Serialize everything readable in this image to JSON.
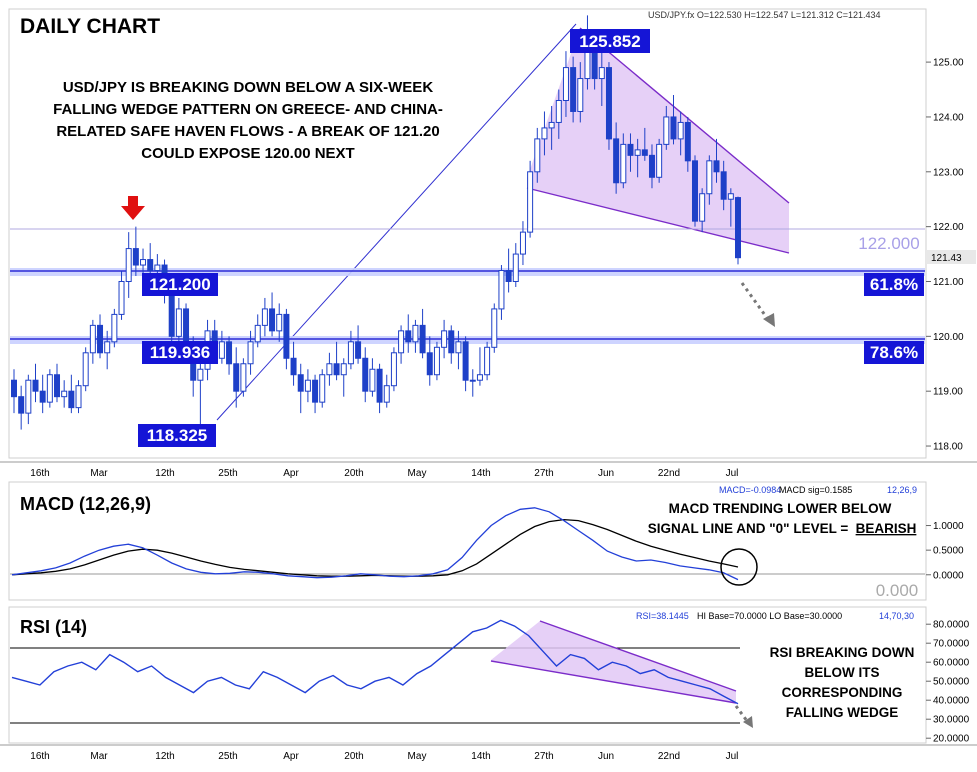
{
  "header": {
    "title": "DAILY CHART",
    "quote": "USD/JPY.fx O=122.530 H=122.547 L=121.312 C=121.434"
  },
  "colors": {
    "bull": "#1e40c8",
    "bear": "#1e40c8",
    "wedge_fill": "#e2c8f6",
    "wedge_line": "#7b2cc9",
    "level_box": "#1515d6",
    "macd_line": "#2340d8",
    "signal_line": "#000000",
    "rsi_line": "#2340d8",
    "annotation_arrow": "#777777",
    "red_arrow": "#e01010"
  },
  "main_panel": {
    "annotation": [
      "USD/JPY IS BREAKING DOWN BELOW A SIX-WEEK",
      "FALLING WEDGE PATTERN ON GREECE- AND CHINA-",
      "RELATED SAFE HAVEN FLOWS - A BREAK OF 121.20",
      "COULD EXPOSE 120.00 NEXT"
    ],
    "level_labels": {
      "high": "125.852",
      "fib618_level": "121.200",
      "fib786_level": "119.936",
      "low": "118.325",
      "fib618_pct": "61.8%",
      "fib786_pct": "78.6%",
      "ref_122": "122.000",
      "last": "121.43"
    },
    "y_ticks": [
      "125.00",
      "124.00",
      "123.00",
      "122.00",
      "121.00",
      "120.00",
      "119.00",
      "118.00"
    ]
  },
  "x_axis": {
    "labels": [
      "16th",
      "Mar",
      "12th",
      "25th",
      "Apr",
      "20th",
      "May",
      "14th",
      "27th",
      "Jun",
      "22nd",
      "Jul"
    ]
  },
  "macd_panel": {
    "title": "MACD (12,26,9)",
    "readout_macd": "MACD=-0.0984",
    "readout_sig": "MACD sig=0.1585",
    "readout_params": "12,26,9",
    "annotation": [
      "MACD TRENDING LOWER BELOW",
      "SIGNAL LINE AND \"0\" LEVEL = ",
      "BEARISH"
    ],
    "zero_label": "0.000",
    "y_ticks": [
      "1.0000",
      "0.5000",
      "0.0000"
    ]
  },
  "rsi_panel": {
    "title": "RSI (14)",
    "readout_rsi": "RSI=38.1445",
    "readout_bases": "HI Base=70.0000 LO Base=30.0000",
    "readout_params": "14,70,30",
    "annotation": [
      "RSI BREAKING DOWN",
      "BELOW ITS",
      "CORRESPONDING",
      "FALLING WEDGE"
    ],
    "y_ticks": [
      "80.0000",
      "70.0000",
      "60.0000",
      "50.0000",
      "40.0000",
      "30.0000",
      "20.0000"
    ]
  },
  "chart_data": {
    "type": "candlestick",
    "symbol": "USD/JPY",
    "ylim": [
      117.8,
      125.95
    ],
    "levels": {
      "fib_61_8": 121.2,
      "fib_78_6": 119.936,
      "swing_high": 125.852,
      "swing_low": 118.325,
      "reference": 122.0
    },
    "candles": [
      [
        119.2,
        119.4,
        118.6,
        118.9
      ],
      [
        118.9,
        119.1,
        118.3,
        118.6
      ],
      [
        118.6,
        119.3,
        118.4,
        119.2
      ],
      [
        119.2,
        119.5,
        118.8,
        119.0
      ],
      [
        119.0,
        119.3,
        118.6,
        118.8
      ],
      [
        118.8,
        119.4,
        118.7,
        119.3
      ],
      [
        119.3,
        119.5,
        118.8,
        118.9
      ],
      [
        118.9,
        119.2,
        118.7,
        119.0
      ],
      [
        119.0,
        119.3,
        118.6,
        118.7
      ],
      [
        118.7,
        119.2,
        118.6,
        119.1
      ],
      [
        119.1,
        119.8,
        119.0,
        119.7
      ],
      [
        119.7,
        120.3,
        119.5,
        120.2
      ],
      [
        120.2,
        120.4,
        119.6,
        119.7
      ],
      [
        119.7,
        120.1,
        119.4,
        119.9
      ],
      [
        119.9,
        120.5,
        119.8,
        120.4
      ],
      [
        120.4,
        121.2,
        120.3,
        121.0
      ],
      [
        121.0,
        121.9,
        120.7,
        121.6
      ],
      [
        121.6,
        122.0,
        121.1,
        121.3
      ],
      [
        121.3,
        121.6,
        120.8,
        121.4
      ],
      [
        121.4,
        121.7,
        121.1,
        121.2
      ],
      [
        121.2,
        121.5,
        120.9,
        121.3
      ],
      [
        121.3,
        121.4,
        120.6,
        120.9
      ],
      [
        120.9,
        121.1,
        119.9,
        120.0
      ],
      [
        120.0,
        120.7,
        119.8,
        120.5
      ],
      [
        120.5,
        120.6,
        119.6,
        119.8
      ],
      [
        119.8,
        120.0,
        118.9,
        119.2
      ],
      [
        119.2,
        119.6,
        118.4,
        119.4
      ],
      [
        119.4,
        120.3,
        119.2,
        120.1
      ],
      [
        120.1,
        120.3,
        119.5,
        119.6
      ],
      [
        119.6,
        120.1,
        119.5,
        119.9
      ],
      [
        119.9,
        120.0,
        119.3,
        119.5
      ],
      [
        119.5,
        119.8,
        118.7,
        119.0
      ],
      [
        119.0,
        119.6,
        118.9,
        119.5
      ],
      [
        119.5,
        120.1,
        119.3,
        119.9
      ],
      [
        119.9,
        120.4,
        119.8,
        120.2
      ],
      [
        120.2,
        120.7,
        120.0,
        120.5
      ],
      [
        120.5,
        120.8,
        120.0,
        120.1
      ],
      [
        120.1,
        120.6,
        119.9,
        120.4
      ],
      [
        120.4,
        120.5,
        119.4,
        119.6
      ],
      [
        119.6,
        119.9,
        119.1,
        119.3
      ],
      [
        119.3,
        119.5,
        118.6,
        119.0
      ],
      [
        119.0,
        119.4,
        118.8,
        119.2
      ],
      [
        119.2,
        119.3,
        118.6,
        118.8
      ],
      [
        118.8,
        119.4,
        118.7,
        119.3
      ],
      [
        119.3,
        119.7,
        119.1,
        119.5
      ],
      [
        119.5,
        119.9,
        119.2,
        119.3
      ],
      [
        119.3,
        119.6,
        118.9,
        119.5
      ],
      [
        119.5,
        120.1,
        119.4,
        119.9
      ],
      [
        119.9,
        120.2,
        119.5,
        119.6
      ],
      [
        119.6,
        119.8,
        118.8,
        119.0
      ],
      [
        119.0,
        119.6,
        118.9,
        119.4
      ],
      [
        119.4,
        119.5,
        118.6,
        118.8
      ],
      [
        118.8,
        119.3,
        118.7,
        119.1
      ],
      [
        119.1,
        119.8,
        119.0,
        119.7
      ],
      [
        119.7,
        120.2,
        119.5,
        120.1
      ],
      [
        120.1,
        120.4,
        119.7,
        119.9
      ],
      [
        119.9,
        120.3,
        119.7,
        120.2
      ],
      [
        120.2,
        120.5,
        119.6,
        119.7
      ],
      [
        119.7,
        120.0,
        119.1,
        119.3
      ],
      [
        119.3,
        119.9,
        119.2,
        119.8
      ],
      [
        119.8,
        120.3,
        119.6,
        120.1
      ],
      [
        120.1,
        120.2,
        119.5,
        119.7
      ],
      [
        119.7,
        120.1,
        119.4,
        119.9
      ],
      [
        119.9,
        120.0,
        119.0,
        119.2
      ],
      [
        119.2,
        119.4,
        118.9,
        119.2
      ],
      [
        119.2,
        119.8,
        119.1,
        119.3
      ],
      [
        119.3,
        119.9,
        119.2,
        119.8
      ],
      [
        119.8,
        120.6,
        119.7,
        120.5
      ],
      [
        120.5,
        121.3,
        120.3,
        121.2
      ],
      [
        121.2,
        121.6,
        120.8,
        121.0
      ],
      [
        121.0,
        121.7,
        120.9,
        121.5
      ],
      [
        121.5,
        122.1,
        121.3,
        121.9
      ],
      [
        121.9,
        123.2,
        121.8,
        123.0
      ],
      [
        123.0,
        123.8,
        122.8,
        123.6
      ],
      [
        123.6,
        124.1,
        123.3,
        123.8
      ],
      [
        123.8,
        124.2,
        123.4,
        123.9
      ],
      [
        123.9,
        124.5,
        123.6,
        124.3
      ],
      [
        124.3,
        125.2,
        124.0,
        124.9
      ],
      [
        124.9,
        125.1,
        123.9,
        124.1
      ],
      [
        124.1,
        125.0,
        123.9,
        124.7
      ],
      [
        124.7,
        125.852,
        124.5,
        125.5
      ],
      [
        125.5,
        125.6,
        124.5,
        124.7
      ],
      [
        124.7,
        125.2,
        124.2,
        124.9
      ],
      [
        124.9,
        125.0,
        123.4,
        123.6
      ],
      [
        123.6,
        123.9,
        122.6,
        122.8
      ],
      [
        122.8,
        123.7,
        122.7,
        123.5
      ],
      [
        123.5,
        123.7,
        123.0,
        123.3
      ],
      [
        123.3,
        123.6,
        122.9,
        123.4
      ],
      [
        123.4,
        123.8,
        123.2,
        123.3
      ],
      [
        123.3,
        123.5,
        122.7,
        122.9
      ],
      [
        122.9,
        123.6,
        122.8,
        123.5
      ],
      [
        123.5,
        124.2,
        123.4,
        124.0
      ],
      [
        124.0,
        124.4,
        123.5,
        123.6
      ],
      [
        123.6,
        124.1,
        123.3,
        123.9
      ],
      [
        123.9,
        124.0,
        123.0,
        123.2
      ],
      [
        123.2,
        123.3,
        122.0,
        122.1
      ],
      [
        122.1,
        122.7,
        121.9,
        122.6
      ],
      [
        122.6,
        123.3,
        122.4,
        123.2
      ],
      [
        123.2,
        123.6,
        122.8,
        123.0
      ],
      [
        123.0,
        123.2,
        122.3,
        122.5
      ],
      [
        122.5,
        122.7,
        122.0,
        122.6
      ],
      [
        122.53,
        122.547,
        121.312,
        121.434
      ]
    ],
    "macd": [
      0.0,
      0.04,
      0.08,
      0.14,
      0.24,
      0.38,
      0.5,
      0.58,
      0.62,
      0.55,
      0.4,
      0.24,
      0.12,
      0.05,
      0.02,
      0.03,
      0.06,
      0.05,
      0.02,
      -0.02,
      -0.04,
      -0.06,
      -0.05,
      -0.02,
      0.02,
      0.0,
      -0.03,
      -0.04,
      -0.02,
      0.02,
      0.1,
      0.35,
      0.7,
      1.0,
      1.2,
      1.33,
      1.36,
      1.28,
      1.1,
      0.9,
      0.7,
      0.48,
      0.36,
      0.28,
      0.3,
      0.25,
      0.18,
      0.14,
      0.1,
      0.04,
      -0.0984
    ],
    "macd_signal": [
      0.0,
      0.02,
      0.04,
      0.07,
      0.12,
      0.2,
      0.3,
      0.4,
      0.48,
      0.52,
      0.5,
      0.44,
      0.36,
      0.28,
      0.21,
      0.15,
      0.11,
      0.08,
      0.05,
      0.02,
      0.0,
      -0.02,
      -0.03,
      -0.03,
      -0.02,
      -0.01,
      -0.02,
      -0.03,
      -0.03,
      -0.02,
      0.0,
      0.08,
      0.22,
      0.42,
      0.62,
      0.82,
      0.98,
      1.08,
      1.12,
      1.1,
      1.02,
      0.92,
      0.8,
      0.68,
      0.58,
      0.5,
      0.42,
      0.35,
      0.28,
      0.22,
      0.1585
    ],
    "rsi": [
      52,
      50,
      48,
      55,
      58,
      60,
      56,
      64,
      60,
      55,
      58,
      52,
      48,
      44,
      50,
      52,
      48,
      46,
      55,
      52,
      48,
      44,
      50,
      53,
      48,
      46,
      50,
      52,
      48,
      54,
      58,
      64,
      70,
      76,
      78,
      82,
      79,
      74,
      66,
      58,
      64,
      62,
      56,
      60,
      58,
      54,
      56,
      52,
      50,
      48,
      46,
      42,
      38.1445
    ],
    "rsi_levels": {
      "hi": 70,
      "lo": 30
    }
  }
}
